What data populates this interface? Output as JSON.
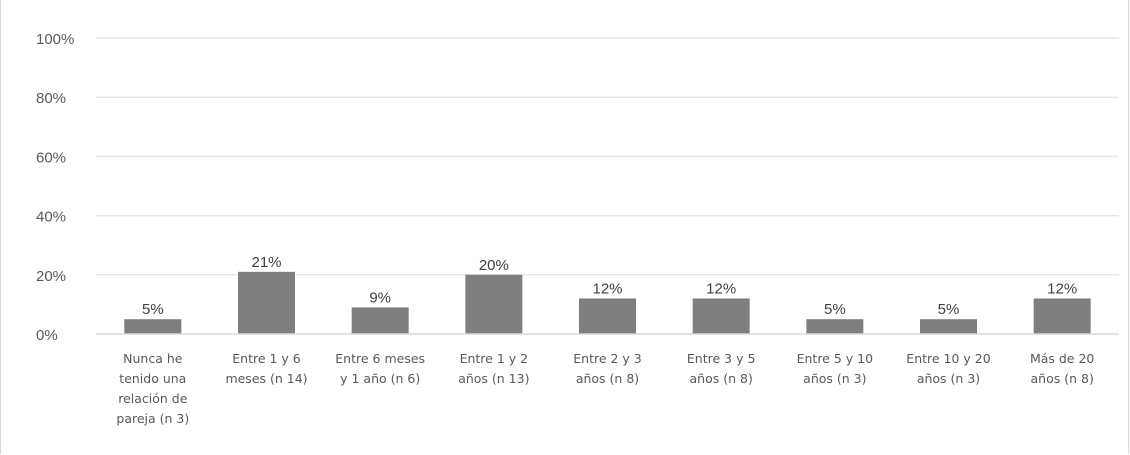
{
  "chart_data": {
    "type": "bar",
    "title": "",
    "xlabel": "",
    "ylabel": "",
    "ylim": [
      0,
      100
    ],
    "y_ticks": [
      "0%",
      "20%",
      "40%",
      "60%",
      "80%",
      "100%"
    ],
    "grid": true,
    "legend": "none",
    "categories": [
      [
        "Nunca he",
        "tenido una",
        "relación de",
        "pareja (n 3)"
      ],
      [
        "Entre 1 y 6",
        "meses (n 14)"
      ],
      [
        "Entre 6 meses",
        "y 1 año (n 6)"
      ],
      [
        "Entre 1 y 2",
        "años (n 13)"
      ],
      [
        "Entre 2 y 3",
        "años (n 8)"
      ],
      [
        "Entre 3 y 5",
        "años (n 8)"
      ],
      [
        "Entre 5 y 10",
        "años (n 3)"
      ],
      [
        "Entre 10 y 20",
        "años (n 3)"
      ],
      [
        "Más de 20",
        "años (n 8)"
      ]
    ],
    "values": [
      5,
      21,
      9,
      20,
      12,
      12,
      5,
      5,
      12
    ],
    "data_labels": [
      "5%",
      "21%",
      "9%",
      "20%",
      "12%",
      "12%",
      "5%",
      "5%",
      "12%"
    ],
    "colors": {
      "bar": "#7f7f7f",
      "grid": "#e6e6e6",
      "axis": "#d9d9d9"
    }
  }
}
